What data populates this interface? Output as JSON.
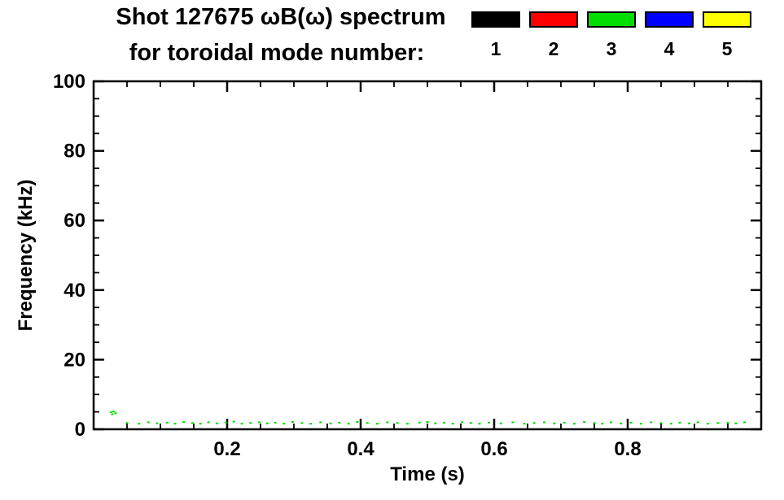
{
  "chart_data": {
    "type": "scatter",
    "title": "Shot 127675 ωB(ω) spectrum",
    "subtitle": "for toroidal mode number:",
    "xlabel": "Time (s)",
    "ylabel": "Frequency (kHz)",
    "xlim": [
      0,
      1.0
    ],
    "ylim": [
      0,
      100
    ],
    "grid": false,
    "x_major_ticks": [
      0.2,
      0.4,
      0.6,
      0.8
    ],
    "x_tick_labels": [
      "0.2",
      "0.4",
      "0.6",
      "0.8"
    ],
    "x_minor_step": 0.05,
    "y_major_ticks": [
      0,
      20,
      40,
      60,
      80,
      100
    ],
    "y_tick_labels": [
      "0",
      "20",
      "40",
      "60",
      "80",
      "100"
    ],
    "y_minor_step": 5,
    "legend": {
      "position": "top-right",
      "items": [
        {
          "label": "1",
          "color": "#000000"
        },
        {
          "label": "2",
          "color": "#ff0000"
        },
        {
          "label": "3",
          "color": "#00dd00"
        },
        {
          "label": "4",
          "color": "#0000ff"
        },
        {
          "label": "5",
          "color": "#ffff00"
        }
      ]
    },
    "series": [
      {
        "name": "toroidal mode n=1",
        "color": "#000000",
        "marker": "dash",
        "points": []
      },
      {
        "name": "toroidal mode n=2",
        "color": "#ff0000",
        "marker": "dash",
        "points": []
      },
      {
        "name": "toroidal mode n=3",
        "color": "#00dd00",
        "marker": "dash",
        "points": [
          [
            0.026,
            4.9
          ],
          [
            0.03,
            5.1
          ],
          [
            0.033,
            4.6
          ],
          [
            0.028,
            4.3
          ],
          [
            0.05,
            1.8
          ],
          [
            0.068,
            1.6
          ],
          [
            0.082,
            2.0
          ],
          [
            0.095,
            1.7
          ],
          [
            0.11,
            1.9
          ],
          [
            0.122,
            1.6
          ],
          [
            0.135,
            2.1
          ],
          [
            0.148,
            1.8
          ],
          [
            0.16,
            1.6
          ],
          [
            0.172,
            2.0
          ],
          [
            0.185,
            1.7
          ],
          [
            0.198,
            1.9
          ],
          [
            0.21,
            2.2
          ],
          [
            0.222,
            1.6
          ],
          [
            0.235,
            1.8
          ],
          [
            0.248,
            2.0
          ],
          [
            0.26,
            1.7
          ],
          [
            0.272,
            1.9
          ],
          [
            0.285,
            1.6
          ],
          [
            0.298,
            2.1
          ],
          [
            0.312,
            1.8
          ],
          [
            0.325,
            1.6
          ],
          [
            0.34,
            2.0
          ],
          [
            0.355,
            1.7
          ],
          [
            0.368,
            1.9
          ],
          [
            0.382,
            1.6
          ],
          [
            0.395,
            2.1
          ],
          [
            0.41,
            1.8
          ],
          [
            0.425,
            1.6
          ],
          [
            0.44,
            2.0
          ],
          [
            0.455,
            1.8
          ],
          [
            0.47,
            1.6
          ],
          [
            0.488,
            1.9
          ],
          [
            0.5,
            2.1
          ],
          [
            0.512,
            1.7
          ],
          [
            0.525,
            1.9
          ],
          [
            0.538,
            1.6
          ],
          [
            0.552,
            2.0
          ],
          [
            0.565,
            1.8
          ],
          [
            0.578,
            1.6
          ],
          [
            0.592,
            1.9
          ],
          [
            0.61,
            1.7
          ],
          [
            0.628,
            2.0
          ],
          [
            0.645,
            1.6
          ],
          [
            0.66,
            1.8
          ],
          [
            0.675,
            2.0
          ],
          [
            0.69,
            1.7
          ],
          [
            0.705,
            1.9
          ],
          [
            0.72,
            1.6
          ],
          [
            0.735,
            2.1
          ],
          [
            0.75,
            1.8
          ],
          [
            0.762,
            1.6
          ],
          [
            0.775,
            2.0
          ],
          [
            0.79,
            1.7
          ],
          [
            0.805,
            1.9
          ],
          [
            0.82,
            1.6
          ],
          [
            0.835,
            2.0
          ],
          [
            0.85,
            1.8
          ],
          [
            0.865,
            1.6
          ],
          [
            0.878,
            1.9
          ],
          [
            0.892,
            1.7
          ],
          [
            0.905,
            2.0
          ],
          [
            0.92,
            1.6
          ],
          [
            0.935,
            1.8
          ],
          [
            0.95,
            1.9
          ],
          [
            0.962,
            1.7
          ],
          [
            0.975,
            2.0
          ]
        ]
      },
      {
        "name": "toroidal mode n=4",
        "color": "#0000ff",
        "marker": "dash",
        "points": []
      },
      {
        "name": "toroidal mode n=5",
        "color": "#ffff00",
        "marker": "dash",
        "points": []
      }
    ]
  }
}
